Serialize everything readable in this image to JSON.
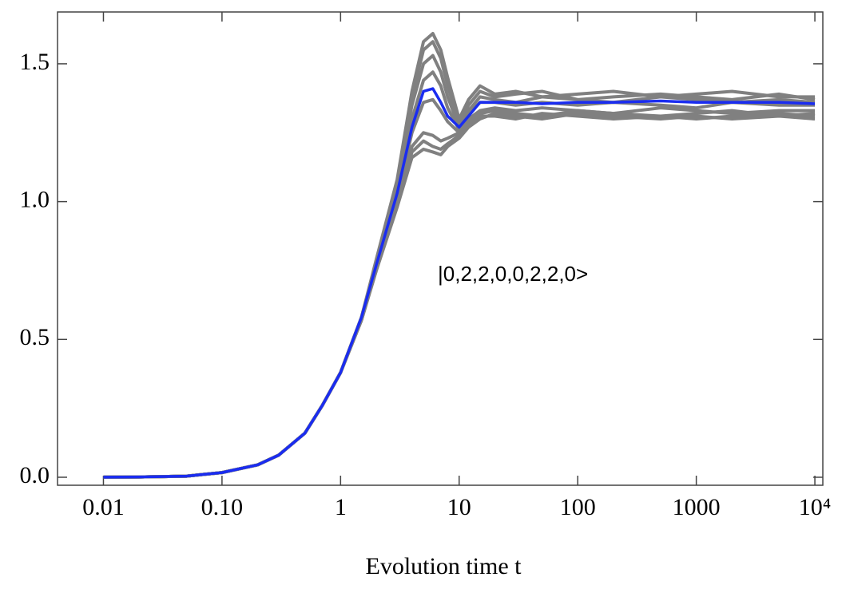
{
  "chart_data": {
    "type": "line",
    "xlabel": "Evolution time t",
    "annotation": "|0,2,2,0,0,2,2,0>",
    "xscale": "log",
    "x": [
      0.01,
      0.02,
      0.05,
      0.1,
      0.2,
      0.3,
      0.5,
      0.7,
      1,
      1.5,
      2,
      3,
      4,
      5,
      6,
      7,
      8,
      10,
      12,
      15,
      20,
      30,
      50,
      100,
      200,
      500,
      1000,
      2000,
      5000,
      10000
    ],
    "series": [
      {
        "color": "#808080",
        "values": [
          0.0002,
          0.001,
          0.004,
          0.017,
          0.045,
          0.08,
          0.16,
          0.26,
          0.38,
          0.58,
          0.79,
          1.08,
          1.4,
          1.58,
          1.61,
          1.55,
          1.45,
          1.3,
          1.37,
          1.42,
          1.39,
          1.4,
          1.38,
          1.39,
          1.4,
          1.38,
          1.39,
          1.4,
          1.38,
          1.38
        ]
      },
      {
        "color": "#808080",
        "values": [
          0.0002,
          0.001,
          0.004,
          0.017,
          0.045,
          0.08,
          0.16,
          0.26,
          0.38,
          0.58,
          0.78,
          1.07,
          1.38,
          1.55,
          1.58,
          1.52,
          1.42,
          1.28,
          1.35,
          1.4,
          1.38,
          1.39,
          1.4,
          1.37,
          1.38,
          1.39,
          1.38,
          1.37,
          1.39,
          1.37
        ]
      },
      {
        "color": "#808080",
        "values": [
          0.0002,
          0.001,
          0.004,
          0.017,
          0.045,
          0.08,
          0.16,
          0.26,
          0.38,
          0.58,
          0.78,
          1.06,
          1.35,
          1.5,
          1.53,
          1.47,
          1.38,
          1.27,
          1.33,
          1.38,
          1.37,
          1.36,
          1.38,
          1.37,
          1.36,
          1.38,
          1.37,
          1.36,
          1.37,
          1.36
        ]
      },
      {
        "color": "#808080",
        "values": [
          0.0002,
          0.001,
          0.004,
          0.017,
          0.045,
          0.08,
          0.16,
          0.26,
          0.38,
          0.58,
          0.77,
          1.04,
          1.3,
          1.44,
          1.47,
          1.42,
          1.34,
          1.26,
          1.32,
          1.36,
          1.36,
          1.35,
          1.36,
          1.35,
          1.36,
          1.35,
          1.34,
          1.36,
          1.35,
          1.35
        ]
      },
      {
        "color": "#808080",
        "values": [
          0.0002,
          0.001,
          0.004,
          0.017,
          0.045,
          0.08,
          0.16,
          0.26,
          0.38,
          0.57,
          0.77,
          1.02,
          1.25,
          1.36,
          1.37,
          1.33,
          1.29,
          1.25,
          1.3,
          1.33,
          1.34,
          1.33,
          1.34,
          1.33,
          1.32,
          1.34,
          1.33,
          1.32,
          1.33,
          1.33
        ]
      },
      {
        "color": "#808080",
        "values": [
          0.0002,
          0.001,
          0.004,
          0.017,
          0.045,
          0.08,
          0.16,
          0.26,
          0.38,
          0.57,
          0.76,
          1.0,
          1.2,
          1.25,
          1.24,
          1.22,
          1.23,
          1.25,
          1.29,
          1.32,
          1.33,
          1.32,
          1.31,
          1.33,
          1.32,
          1.31,
          1.32,
          1.33,
          1.31,
          1.32
        ]
      },
      {
        "color": "#808080",
        "values": [
          0.0002,
          0.001,
          0.004,
          0.017,
          0.045,
          0.08,
          0.16,
          0.26,
          0.38,
          0.57,
          0.75,
          0.99,
          1.18,
          1.22,
          1.2,
          1.19,
          1.21,
          1.24,
          1.28,
          1.31,
          1.31,
          1.3,
          1.32,
          1.31,
          1.3,
          1.31,
          1.3,
          1.31,
          1.32,
          1.31
        ]
      },
      {
        "color": "#808080",
        "values": [
          0.0002,
          0.001,
          0.004,
          0.017,
          0.045,
          0.08,
          0.16,
          0.26,
          0.38,
          0.57,
          0.75,
          0.98,
          1.16,
          1.19,
          1.18,
          1.17,
          1.2,
          1.23,
          1.27,
          1.3,
          1.32,
          1.31,
          1.3,
          1.32,
          1.31,
          1.3,
          1.31,
          1.3,
          1.31,
          1.3
        ]
      },
      {
        "color": "#1a2cf0",
        "values": [
          0.0002,
          0.001,
          0.004,
          0.017,
          0.045,
          0.08,
          0.16,
          0.26,
          0.38,
          0.58,
          0.77,
          1.03,
          1.27,
          1.4,
          1.41,
          1.36,
          1.31,
          1.27,
          1.31,
          1.36,
          1.36,
          1.36,
          1.355,
          1.36,
          1.36,
          1.365,
          1.36,
          1.36,
          1.36,
          1.355
        ]
      }
    ],
    "xlim": [
      0.0041,
      11670
    ],
    "ylim": [
      -0.029,
      1.688
    ],
    "xticks": [
      0.01,
      {
        "value": 0.1,
        "label": "0.10"
      },
      1,
      10,
      100,
      1000,
      {
        "value": 10000,
        "label": "10⁴"
      }
    ],
    "yticks": [
      {
        "value": 0,
        "label": "0.0"
      },
      0.5,
      {
        "value": 1,
        "label": "1.0"
      },
      1.5
    ]
  }
}
